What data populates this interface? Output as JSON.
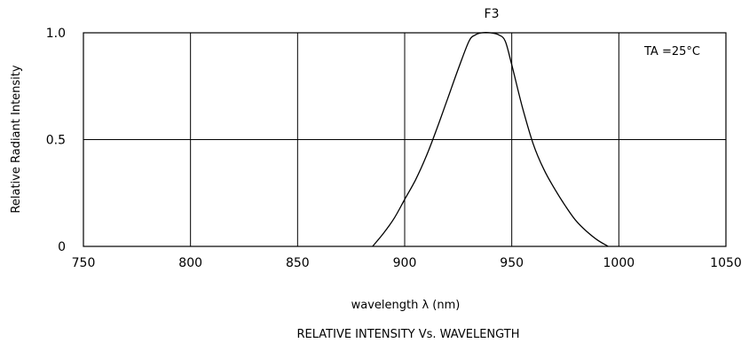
{
  "chart_data": {
    "type": "line",
    "title": "F3",
    "caption": "RELATIVE INTENSITY Vs. WAVELENGTH",
    "xlabel": "wavelength λ (nm)",
    "ylabel": "Relative Radiant Intensity",
    "annotation": "TA =25°C",
    "xlim": [
      750,
      1050
    ],
    "ylim": [
      0,
      1.0
    ],
    "xticks": [
      750,
      800,
      850,
      900,
      950,
      1000,
      1050
    ],
    "xtick_labels": [
      "750",
      "800",
      "850",
      "900",
      "950",
      "1000",
      "1050"
    ],
    "yticks": [
      0,
      0.5,
      1.0
    ],
    "ytick_labels": [
      "0",
      "0.5",
      "1.0"
    ],
    "grid": true,
    "series": [
      {
        "x": [
          885,
          890,
          895,
          900,
          905,
          910,
          915,
          920,
          925,
          930,
          933,
          936,
          940,
          944,
          947,
          950,
          955,
          960,
          965,
          970,
          975,
          980,
          985,
          990,
          995
        ],
        "y": [
          0,
          0.06,
          0.13,
          0.22,
          0.31,
          0.42,
          0.55,
          0.69,
          0.83,
          0.96,
          0.99,
          1.0,
          1.0,
          0.99,
          0.96,
          0.85,
          0.65,
          0.48,
          0.36,
          0.27,
          0.19,
          0.12,
          0.07,
          0.03,
          0
        ]
      }
    ]
  }
}
